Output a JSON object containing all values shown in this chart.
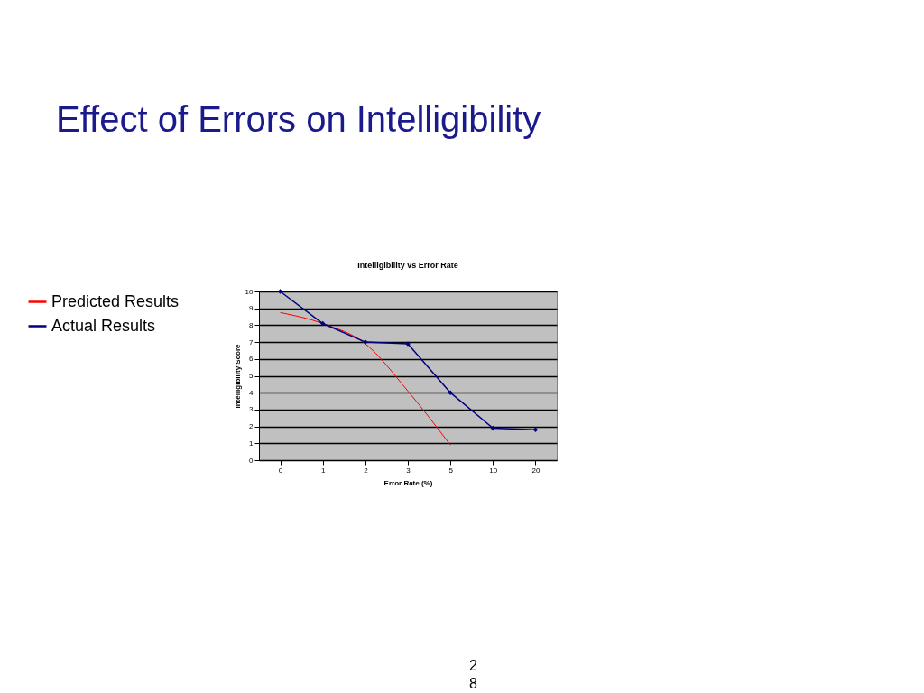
{
  "chart_data": {
    "type": "line",
    "title": "Effect of Errors on Intelligibility",
    "subtitle": "Intelligibility vs Error  Rate",
    "xlabel": "Error Rate (%)",
    "ylabel": "Intelligibility  Score",
    "categories": [
      "0",
      "1",
      "2",
      "3",
      "5",
      "10",
      "20"
    ],
    "series": [
      {
        "name": "Predicted Results",
        "color": "#ff0000",
        "marker": "none",
        "values": [
          8.75,
          8.1,
          6.9,
          4.1,
          0.9,
          null,
          null
        ]
      },
      {
        "name": "Actual Results",
        "color": "#000080",
        "marker": "diamond",
        "values": [
          10,
          8.1,
          7,
          6.9,
          4,
          1.9,
          1.8
        ]
      }
    ],
    "ylim": [
      0,
      10
    ],
    "yticks": [
      0,
      1,
      2,
      3,
      4,
      5,
      6,
      7,
      8,
      9,
      10
    ],
    "grid": "y",
    "legend": "left",
    "annotations": [
      "28"
    ]
  }
}
